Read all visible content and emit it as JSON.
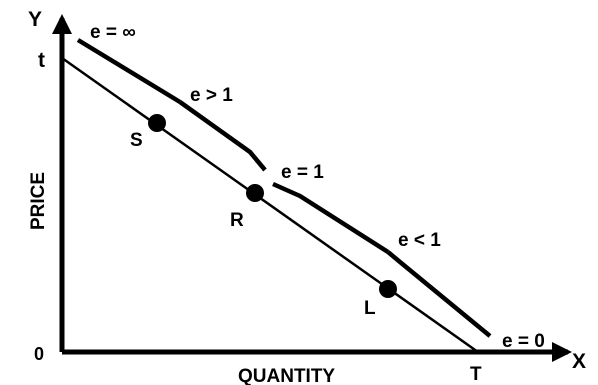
{
  "axes": {
    "y_axis_letter": "Y",
    "x_axis_letter": "X",
    "y_axis_label": "PRICE",
    "x_axis_label": "QUANTITY",
    "origin_label": "0",
    "y_intercept_label": "t",
    "x_intercept_label": "T"
  },
  "points": {
    "s": "S",
    "r": "R",
    "l": "L"
  },
  "elasticity_labels": {
    "infinite": "e = ∞",
    "greater": "e > 1",
    "unit": "e = 1",
    "less": "e < 1",
    "zero": "e = 0"
  }
}
